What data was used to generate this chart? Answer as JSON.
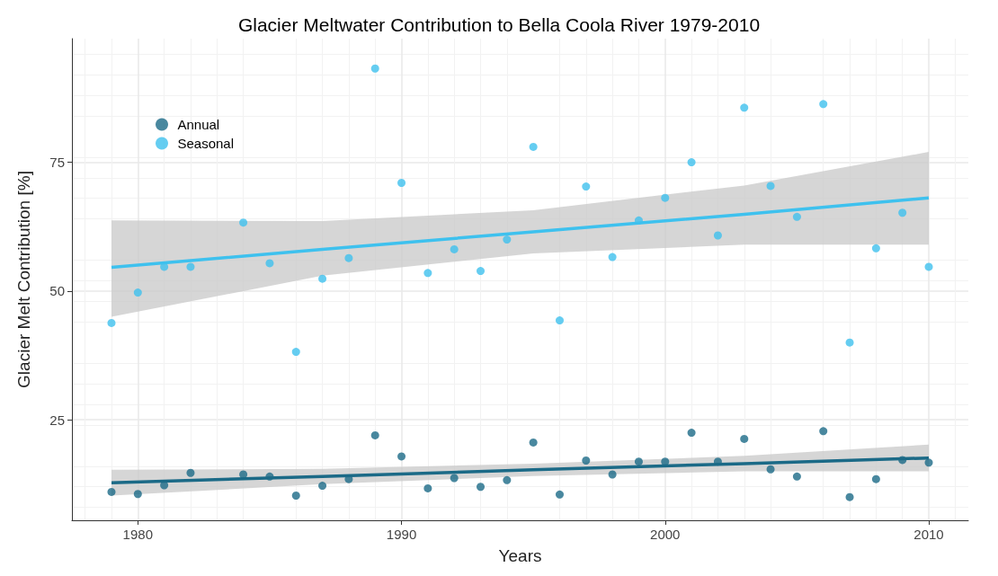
{
  "chart_data": {
    "type": "scatter",
    "title": "Glacier Meltwater Contribution to Bella Coola River 1979-2010",
    "xlabel": "Years",
    "ylabel": "Glacier Melt Contribution [%]",
    "xlim": [
      1977.5,
      2011.5
    ],
    "xticks": [
      1980,
      1990,
      2000,
      2010
    ],
    "ylim": [
      5.5,
      99
    ],
    "yticks": [
      25,
      50,
      75
    ],
    "grid": true,
    "legend": "top left",
    "marker": "circle",
    "series": [
      {
        "name": "Annual",
        "color": "#1b6a87",
        "x": [
          1979,
          1980,
          1981,
          1982,
          1984,
          1985,
          1986,
          1987,
          1988,
          1989,
          1990,
          1991,
          1992,
          1993,
          1994,
          1995,
          1996,
          1997,
          1998,
          1999,
          2000,
          2001,
          2002,
          2003,
          2004,
          2005,
          2006,
          2007,
          2008,
          2009,
          2010
        ],
        "values": [
          11,
          10.6,
          12.3,
          14.7,
          14.4,
          14,
          10.3,
          12.2,
          13.5,
          22,
          17.9,
          11.7,
          13.7,
          12,
          13.3,
          20.6,
          10.5,
          17.1,
          14.4,
          16.9,
          16.9,
          22.5,
          16.9,
          21.3,
          15.4,
          14,
          22.8,
          10,
          13.5,
          17.2,
          16.7
        ]
      },
      {
        "name": "Seasonal",
        "color": "#3ec1ee",
        "x": [
          1979,
          1980,
          1981,
          1982,
          1984,
          1985,
          1986,
          1987,
          1988,
          1989,
          1990,
          1991,
          1992,
          1993,
          1994,
          1995,
          1996,
          1997,
          1998,
          1999,
          2000,
          2001,
          2002,
          2003,
          2004,
          2005,
          2006,
          2007,
          2008,
          2009,
          2010
        ],
        "values": [
          43.8,
          49.7,
          54.7,
          54.7,
          63.3,
          55.4,
          38.2,
          52.4,
          56.4,
          93.2,
          71,
          53.5,
          58.1,
          53.9,
          60,
          78,
          44.3,
          70.3,
          56.6,
          63.7,
          68.1,
          75,
          60.8,
          85.6,
          70.4,
          64.4,
          86.3,
          40,
          58.3,
          65.2,
          54.7
        ]
      },
      {
        "type": "line",
        "marker": "none",
        "color": "#1b6a87",
        "x": [
          1979,
          1987,
          1995,
          2003,
          2010
        ],
        "values": [
          12.8,
          14,
          15.3,
          16.5,
          17.6
        ],
        "lower": [
          10.3,
          12.5,
          14.1,
          15,
          15
        ],
        "upper": [
          15.3,
          15.5,
          16.5,
          18,
          20.2
        ]
      },
      {
        "type": "line",
        "marker": "none",
        "color": "#3ec1ee",
        "x": [
          1979,
          1987,
          1995,
          2003,
          2010
        ],
        "values": [
          54.6,
          58.1,
          61.5,
          64.9,
          68.1
        ],
        "lower": [
          45,
          53,
          57.3,
          59,
          59
        ],
        "upper": [
          63.7,
          63.6,
          65.7,
          70.5,
          77
        ]
      }
    ]
  }
}
